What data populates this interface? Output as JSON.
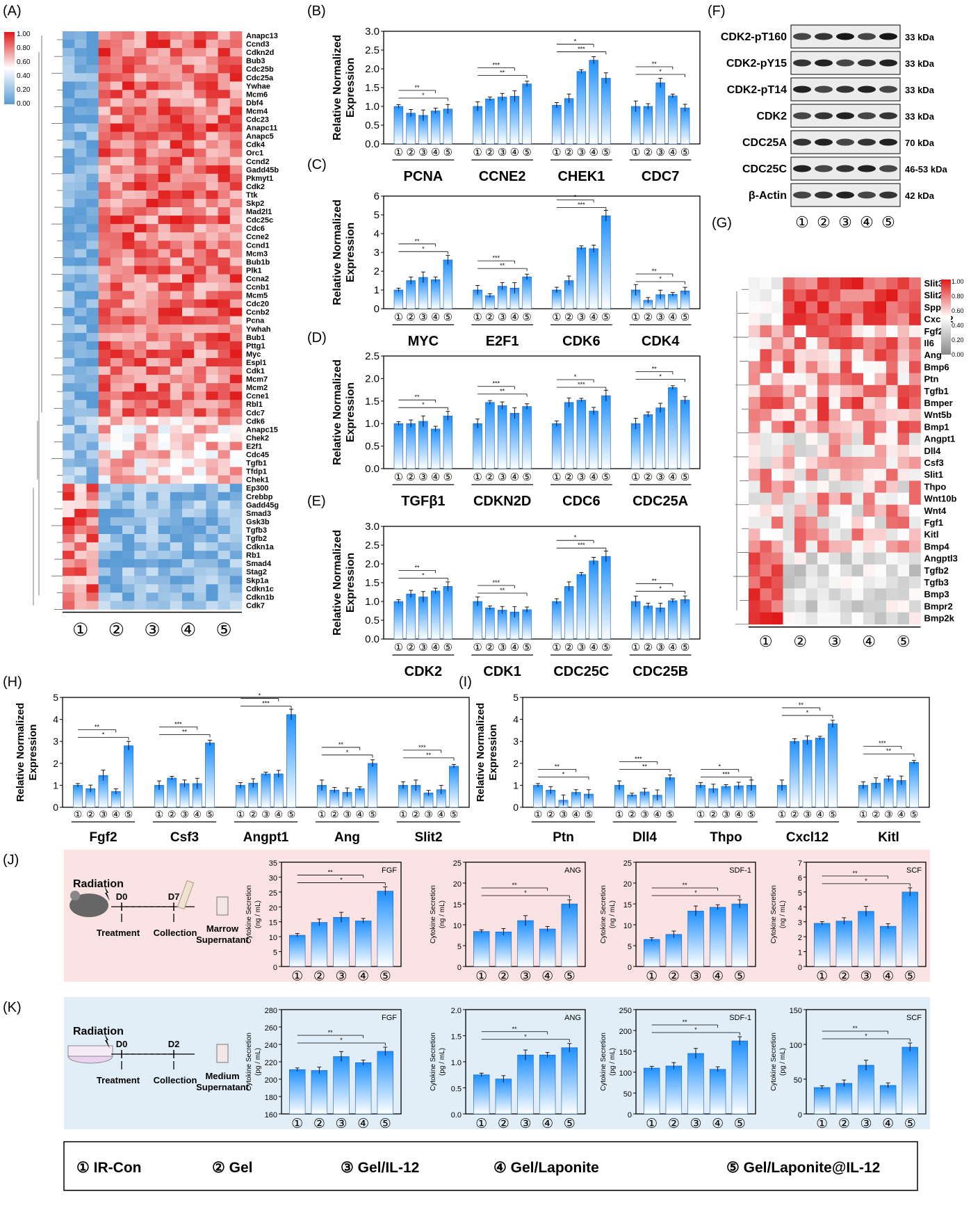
{
  "panel_labels": [
    "(A)",
    "(B)",
    "(C)",
    "(D)",
    "(E)",
    "(F)",
    "(G)",
    "(H)",
    "(I)",
    "(J)",
    "(K)"
  ],
  "group_marks": [
    "①",
    "②",
    "③",
    "④",
    "⑤"
  ],
  "legend": [
    "① IR-Con",
    "② Gel",
    "③ Gel/IL-12",
    "④ Gel/Laponite",
    "⑤ Gel/Laponite@IL-12"
  ],
  "sig_marks": [
    "*",
    "**",
    "***",
    "****"
  ],
  "colors": {
    "bar_top": "#1e90ff",
    "bar_bottom": "#ffffff",
    "heat_high": "#e01818",
    "heat_mid": "#ffffff",
    "heat_low": "#5b9bd5",
    "heat_gray": "#888888",
    "panel_j_bg": "#fbe3e3",
    "panel_k_bg": "#e1eef8"
  },
  "schematic_j": {
    "title": "Radiation",
    "day0": "D0",
    "day1": "D7",
    "treatment": "Treatment",
    "collection": "Collection",
    "sample": "Marrow Supernatant"
  },
  "schematic_k": {
    "title": "Radiation",
    "day0": "D0",
    "day1": "D2",
    "treatment": "Treatment",
    "collection": "Collection",
    "sample": "Medium Supernatant"
  },
  "western": {
    "rows": [
      "CDK2-pT160",
      "CDK2-pY15",
      "CDK2-pT14",
      "CDK2",
      "CDC25A",
      "CDC25C",
      "β-Actin"
    ],
    "sizes": [
      "33 kDa",
      "33 kDa",
      "33 kDa",
      "33 kDa",
      "70 kDa",
      "46-53 kDa",
      "42 kDa"
    ]
  },
  "chart_data": [
    {
      "id": "A",
      "type": "heatmap",
      "scale_ticks": [
        "1.00",
        "0.80",
        "0.60",
        "0.40",
        "0.20",
        "0.00"
      ],
      "columns": 15,
      "rows": [
        "Anapc13",
        "Ccnd3",
        "Cdkn2d",
        "Bub3",
        "Cdc25b",
        "Cdc25a",
        "Ywhae",
        "Mcm6",
        "Dbf4",
        "Mcm4",
        "Cdc23",
        "Anapc11",
        "Anapc5",
        "Cdk4",
        "Orc1",
        "Ccnd2",
        "Gadd45b",
        "Pkmyt1",
        "Cdk2",
        "Ttk",
        "Skp2",
        "Mad2l1",
        "Cdc25c",
        "Cdc6",
        "Ccne2",
        "Ccnd1",
        "Mcm3",
        "Bub1b",
        "Plk1",
        "Ccna2",
        "Ccnb1",
        "Mcm5",
        "Cdc20",
        "Ccnb2",
        "Pcna",
        "Ywhah",
        "Bub1",
        "Pttg1",
        "Myc",
        "Espl1",
        "Cdk1",
        "Mcm7",
        "Mcm2",
        "Ccne1",
        "Rbl1",
        "Cdc7",
        "Cdk6",
        "Anapc15",
        "Chek2",
        "E2f1",
        "Cdc45",
        "Tgfb1",
        "Tfdp1",
        "Chek1",
        "Ep300",
        "Crebbp",
        "Gadd45g",
        "Smad3",
        "Gsk3b",
        "Tgfb3",
        "Tgfb2",
        "Cdkn1a",
        "Rb1",
        "Smad4",
        "Stag2",
        "Skp1a",
        "Cdkn1c",
        "Cdkn1b",
        "Cdk7"
      ],
      "cluster_sizes": [
        46,
        8,
        15
      ],
      "cluster_levels": [
        [
          0.1,
          0.8
        ],
        [
          0.2,
          0.6
        ],
        [
          0.8,
          0.15
        ]
      ]
    },
    {
      "id": "B",
      "type": "bar",
      "ylabel": "Relative Normalized Expression",
      "ylim": [
        0,
        3.0
      ],
      "yticks": [
        "0.0",
        "0.5",
        "1.0",
        "1.5",
        "2.0",
        "2.5",
        "3.0"
      ],
      "groups": [
        {
          "name": "PCNA",
          "values": [
            1.0,
            0.82,
            0.76,
            0.88,
            0.93
          ]
        },
        {
          "name": "CCNE2",
          "values": [
            1.0,
            1.2,
            1.25,
            1.27,
            1.6
          ]
        },
        {
          "name": "CHEK1",
          "values": [
            1.03,
            1.21,
            1.93,
            2.23,
            1.75
          ]
        },
        {
          "name": "CDC7",
          "values": [
            1.0,
            1.0,
            1.63,
            1.28,
            0.96
          ]
        }
      ]
    },
    {
      "id": "C",
      "type": "bar",
      "ylabel": "Relative Normalized Expression",
      "ylim": [
        0,
        6
      ],
      "yticks": [
        "0",
        "1",
        "2",
        "3",
        "4",
        "5",
        "6"
      ],
      "groups": [
        {
          "name": "MYC",
          "values": [
            1.0,
            1.5,
            1.67,
            1.55,
            2.6
          ]
        },
        {
          "name": "E2F1",
          "values": [
            1.0,
            0.7,
            1.2,
            1.1,
            1.7
          ]
        },
        {
          "name": "CDK6",
          "values": [
            1.0,
            1.5,
            3.25,
            3.2,
            4.95
          ]
        },
        {
          "name": "CDK4",
          "values": [
            1.0,
            0.45,
            0.75,
            0.77,
            0.95
          ]
        }
      ]
    },
    {
      "id": "D",
      "type": "bar",
      "ylabel": "Relative Normalized Expression",
      "ylim": [
        0,
        2.5
      ],
      "yticks": [
        "0.0",
        "0.5",
        "1.0",
        "1.5",
        "2.0",
        "2.5"
      ],
      "groups": [
        {
          "name": "TGFβ1",
          "values": [
            1.0,
            1.0,
            1.05,
            0.88,
            1.17
          ]
        },
        {
          "name": "CDKN2D",
          "values": [
            1.0,
            1.47,
            1.4,
            1.23,
            1.38
          ]
        },
        {
          "name": "CDC6",
          "values": [
            1.0,
            1.47,
            1.52,
            1.28,
            1.62
          ]
        },
        {
          "name": "CDC25A",
          "values": [
            1.0,
            1.2,
            1.35,
            1.8,
            1.52
          ]
        }
      ]
    },
    {
      "id": "E",
      "type": "bar",
      "ylabel": "Relative Normalized Expression",
      "ylim": [
        0,
        3.0
      ],
      "yticks": [
        "0.0",
        "0.5",
        "1.0",
        "1.5",
        "2.0",
        "2.5",
        "3.0"
      ],
      "groups": [
        {
          "name": "CDK2",
          "values": [
            1.0,
            1.2,
            1.12,
            1.28,
            1.4
          ]
        },
        {
          "name": "CDK1",
          "values": [
            1.0,
            0.83,
            0.77,
            0.72,
            0.78
          ]
        },
        {
          "name": "CDC25C",
          "values": [
            1.0,
            1.4,
            1.72,
            2.08,
            2.2
          ]
        },
        {
          "name": "CDC25B",
          "values": [
            1.0,
            0.88,
            0.83,
            1.02,
            1.05
          ]
        }
      ]
    },
    {
      "id": "G",
      "type": "heatmap",
      "scale_ticks": [
        "1.00",
        "0.80",
        "0.60",
        "0.40",
        "0.20",
        "0.00"
      ],
      "columns": 15,
      "rows": [
        "Slit3",
        "Slit2",
        "Spp1",
        "Cxcl12",
        "Fgf2",
        "Il6",
        "Ang",
        "Bmp6",
        "Ptn",
        "Tgfb1",
        "Bmper",
        "Wnt5b",
        "Bmp1",
        "Angpt1",
        "Dll4",
        "Csf3",
        "Slit1",
        "Thpo",
        "Wnt10b",
        "Wnt4",
        "Fgf1",
        "Kitl",
        "Bmp4",
        "Angptl3",
        "Tgfb2",
        "Tgfb3",
        "Bmp3",
        "Bmpr2",
        "Bmp2k"
      ]
    },
    {
      "id": "H",
      "type": "bar",
      "ylabel": "Relative Normalized Expression",
      "ylim": [
        0,
        5
      ],
      "yticks": [
        "0",
        "1",
        "2",
        "3",
        "4",
        "5"
      ],
      "groups": [
        {
          "name": "Fgf2",
          "values": [
            1.0,
            0.85,
            1.45,
            0.72,
            2.8
          ]
        },
        {
          "name": "Csf3",
          "values": [
            1.0,
            1.33,
            1.08,
            1.08,
            2.93
          ]
        },
        {
          "name": "Angpt1",
          "values": [
            1.0,
            1.1,
            1.52,
            1.52,
            4.22
          ]
        },
        {
          "name": "Ang",
          "values": [
            1.0,
            0.78,
            0.68,
            0.85,
            2.0
          ]
        },
        {
          "name": "Slit2",
          "values": [
            1.0,
            1.0,
            0.65,
            0.8,
            1.87
          ]
        }
      ]
    },
    {
      "id": "I",
      "type": "bar",
      "ylabel": "Relative Normalized Expression",
      "ylim": [
        0,
        5
      ],
      "yticks": [
        "0",
        "1",
        "2",
        "3",
        "4",
        "5"
      ],
      "groups": [
        {
          "name": "Ptn",
          "values": [
            1.0,
            0.78,
            0.32,
            0.68,
            0.6
          ]
        },
        {
          "name": "Dll4",
          "values": [
            1.0,
            0.56,
            0.7,
            0.55,
            1.35
          ]
        },
        {
          "name": "Thpo",
          "values": [
            1.0,
            0.85,
            0.95,
            0.98,
            1.0
          ]
        },
        {
          "name": "Cxcl12",
          "values": [
            1.0,
            3.0,
            3.05,
            3.15,
            3.8
          ]
        },
        {
          "name": "Kitl",
          "values": [
            1.0,
            1.1,
            1.3,
            1.22,
            2.05
          ]
        }
      ]
    },
    {
      "id": "J1",
      "type": "bar",
      "title": "FGF",
      "ylabel": "Cytokine Secretion (ng / mL)",
      "ylim": [
        0,
        35
      ],
      "yticks": [
        "0",
        "5",
        "10",
        "15",
        "20",
        "25",
        "30",
        "35"
      ],
      "values": [
        10.5,
        14.8,
        16.5,
        15.3,
        25.3
      ]
    },
    {
      "id": "J2",
      "type": "bar",
      "title": "ANG",
      "ylabel": "Cytokine Secretion (ng / mL)",
      "ylim": [
        0,
        25
      ],
      "yticks": [
        "0",
        "5",
        "10",
        "15",
        "20",
        "25"
      ],
      "values": [
        8.4,
        8.3,
        11.0,
        9.0,
        15.0
      ]
    },
    {
      "id": "J3",
      "type": "bar",
      "title": "SDF-1",
      "ylabel": "Cytokine Secretion (ng / mL)",
      "ylim": [
        0,
        25
      ],
      "yticks": [
        "0",
        "5",
        "10",
        "15",
        "20",
        "25"
      ],
      "values": [
        6.5,
        7.7,
        13.3,
        14.2,
        15.0
      ]
    },
    {
      "id": "J4",
      "type": "bar",
      "title": "SCF",
      "ylabel": "Cytokine Secretion (ng / mL)",
      "ylim": [
        0,
        7
      ],
      "yticks": [
        "0",
        "1",
        "2",
        "3",
        "4",
        "5",
        "6",
        "7"
      ],
      "values": [
        2.9,
        3.05,
        3.7,
        2.7,
        5.0
      ]
    },
    {
      "id": "K1",
      "type": "bar",
      "title": "FGF",
      "ylabel": "Cytokine Secretion (pg / mL)",
      "ylim": [
        160,
        280
      ],
      "yticks": [
        "160",
        "180",
        "200",
        "220",
        "240",
        "260",
        "280"
      ],
      "values": [
        211,
        210,
        226,
        219,
        232
      ]
    },
    {
      "id": "K2",
      "type": "bar",
      "title": "ANG",
      "ylabel": "Cytokine Secretion (pg / mL)",
      "ylim": [
        0,
        2.0
      ],
      "yticks": [
        "0.0",
        "0.5",
        "1.0",
        "1.5",
        "2.0"
      ],
      "values": [
        0.75,
        0.67,
        1.13,
        1.13,
        1.27
      ]
    },
    {
      "id": "K3",
      "type": "bar",
      "title": "SDF-1",
      "ylabel": "Cytokine Secretion (pg / mL)",
      "ylim": [
        0,
        250
      ],
      "yticks": [
        "0",
        "50",
        "100",
        "150",
        "200",
        "250"
      ],
      "values": [
        110,
        115,
        145,
        107,
        175
      ]
    },
    {
      "id": "K4",
      "type": "bar",
      "title": "SCF",
      "ylabel": "Cytokine Secretion (pg / mL)",
      "ylim": [
        0,
        150
      ],
      "yticks": [
        "0",
        "50",
        "100",
        "150"
      ],
      "values": [
        38,
        44,
        70,
        41,
        96
      ]
    }
  ]
}
